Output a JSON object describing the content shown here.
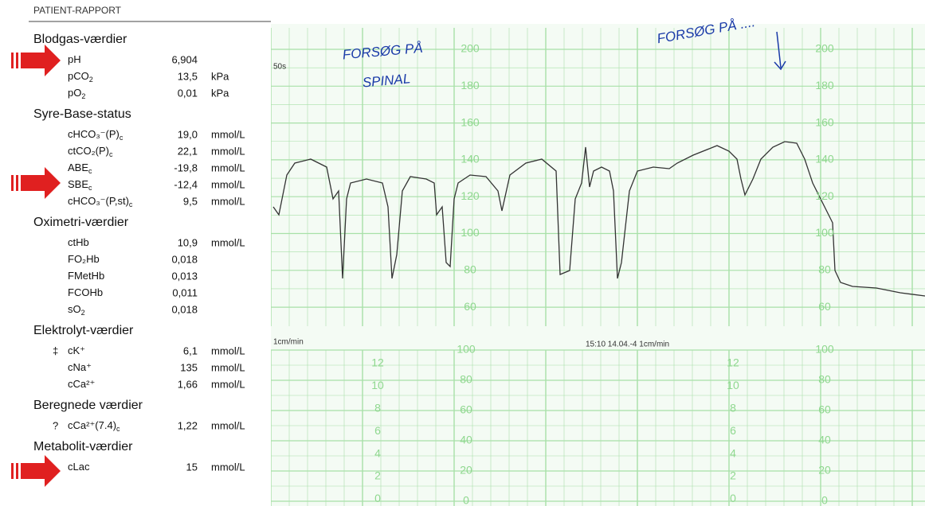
{
  "header": "PATIENT-RAPPORT",
  "sections": [
    {
      "title": "Blodgas-værdier",
      "rows": [
        {
          "name": "pH",
          "value": "6,904"
        },
        {
          "name": "pCO",
          "sub": "2",
          "value": "13,5",
          "unit": "kPa"
        },
        {
          "name": "pO",
          "sub": "2",
          "value": "0,01",
          "unit": "kPa"
        }
      ]
    },
    {
      "title": "Syre-Base-status",
      "rows": [
        {
          "name": "cHCO₃⁻(P)",
          "sub": "c",
          "value": "19,0",
          "unit": "mmol/L"
        },
        {
          "name": "ctCO₂(P)",
          "sub": "c",
          "value": "22,1",
          "unit": "mmol/L"
        },
        {
          "name": "ABE",
          "sub": "c",
          "value": "-19,8",
          "unit": "mmol/L"
        },
        {
          "name": "SBE",
          "sub": "c",
          "value": "-12,4",
          "unit": "mmol/L"
        },
        {
          "name": "cHCO₃⁻(P,st)",
          "sub": "c",
          "value": "9,5",
          "unit": "mmol/L"
        }
      ]
    },
    {
      "title": "Oximetri-værdier",
      "rows": [
        {
          "name": "ctHb",
          "value": "10,9",
          "unit": "mmol/L"
        },
        {
          "name": "FO₂Hb",
          "value": "0,018"
        },
        {
          "name": "FMetHb",
          "value": "0,013"
        },
        {
          "name": "FCOHb",
          "value": "0,011"
        },
        {
          "name": "sO",
          "sub": "2",
          "value": "0,018"
        }
      ]
    },
    {
      "title": "Elektrolyt-værdier",
      "rows": [
        {
          "flag": "‡",
          "name": "cK⁺",
          "value": "6,1",
          "unit": "mmol/L"
        },
        {
          "name": "cNa⁺",
          "value": "135",
          "unit": "mmol/L"
        },
        {
          "name": "cCa²⁺",
          "value": "1,66",
          "unit": "mmol/L"
        }
      ]
    },
    {
      "title": "Beregnede værdier",
      "rows": [
        {
          "flag": "?",
          "name": "cCa²⁺(7.4)",
          "sub": "c",
          "value": "1,22",
          "unit": "mmol/L"
        }
      ]
    },
    {
      "title": "Metabolit-værdier",
      "rows": [
        {
          "name": "cLac",
          "value": "15",
          "unit": "mmol/L"
        }
      ]
    }
  ],
  "ctg": {
    "upper_scale": [
      200,
      180,
      160,
      140,
      120,
      100,
      80,
      60
    ],
    "lower_scale": [
      100,
      80,
      60,
      40,
      20,
      0
    ],
    "lower_small_scale": [
      12,
      10,
      8,
      6,
      4,
      2,
      0
    ],
    "marker": "50s",
    "speed": "1cm/min",
    "stamp": "15:10  14.04.-4  1cm/min",
    "notes": [
      "FORSØG PÅ",
      "SPINAL",
      "FORSØG PÅ  ...."
    ]
  }
}
